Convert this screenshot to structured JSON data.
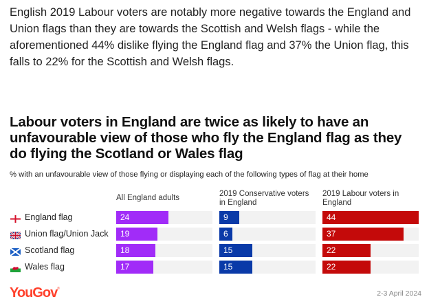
{
  "intro_text": "English 2019 Labour voters are notably more negative towards the England and Union flags than they are towards the Scottish and Welsh flags - while the aforementioned 44% dislike flying the England flag and 37% the Union flag, this falls to 22% for the Scottish and Welsh flags.",
  "footer": {
    "brand": "YouGov",
    "date": "2-3 April 2024"
  },
  "chart_data": {
    "type": "bar",
    "orientation": "horizontal",
    "title": "Labour voters in England are twice as likely to have an unfavourable view of those who fly the England flag as they do flying the Scotland or Wales flag",
    "subtitle": "% with an unfavourable view of those flying or displaying each of the following types of flag at their home",
    "categories": [
      "England flag",
      "Union flag/Union Jack",
      "Scotland flag",
      "Wales flag"
    ],
    "category_icons": [
      "england-flag-icon",
      "union-jack-icon",
      "scotland-flag-icon",
      "wales-flag-icon"
    ],
    "series": [
      {
        "name": "All England adults",
        "color": "#a12cf8",
        "values": [
          24,
          19,
          18,
          17
        ]
      },
      {
        "name": "2019 Conservative voters in England",
        "color": "#0a3aa8",
        "values": [
          9,
          6,
          15,
          15
        ]
      },
      {
        "name": "2019 Labour voters in England",
        "color": "#c40a0a",
        "values": [
          44,
          37,
          22,
          22
        ]
      }
    ],
    "xlim": [
      0,
      44
    ],
    "grid": false,
    "legend": "panel-headers"
  }
}
